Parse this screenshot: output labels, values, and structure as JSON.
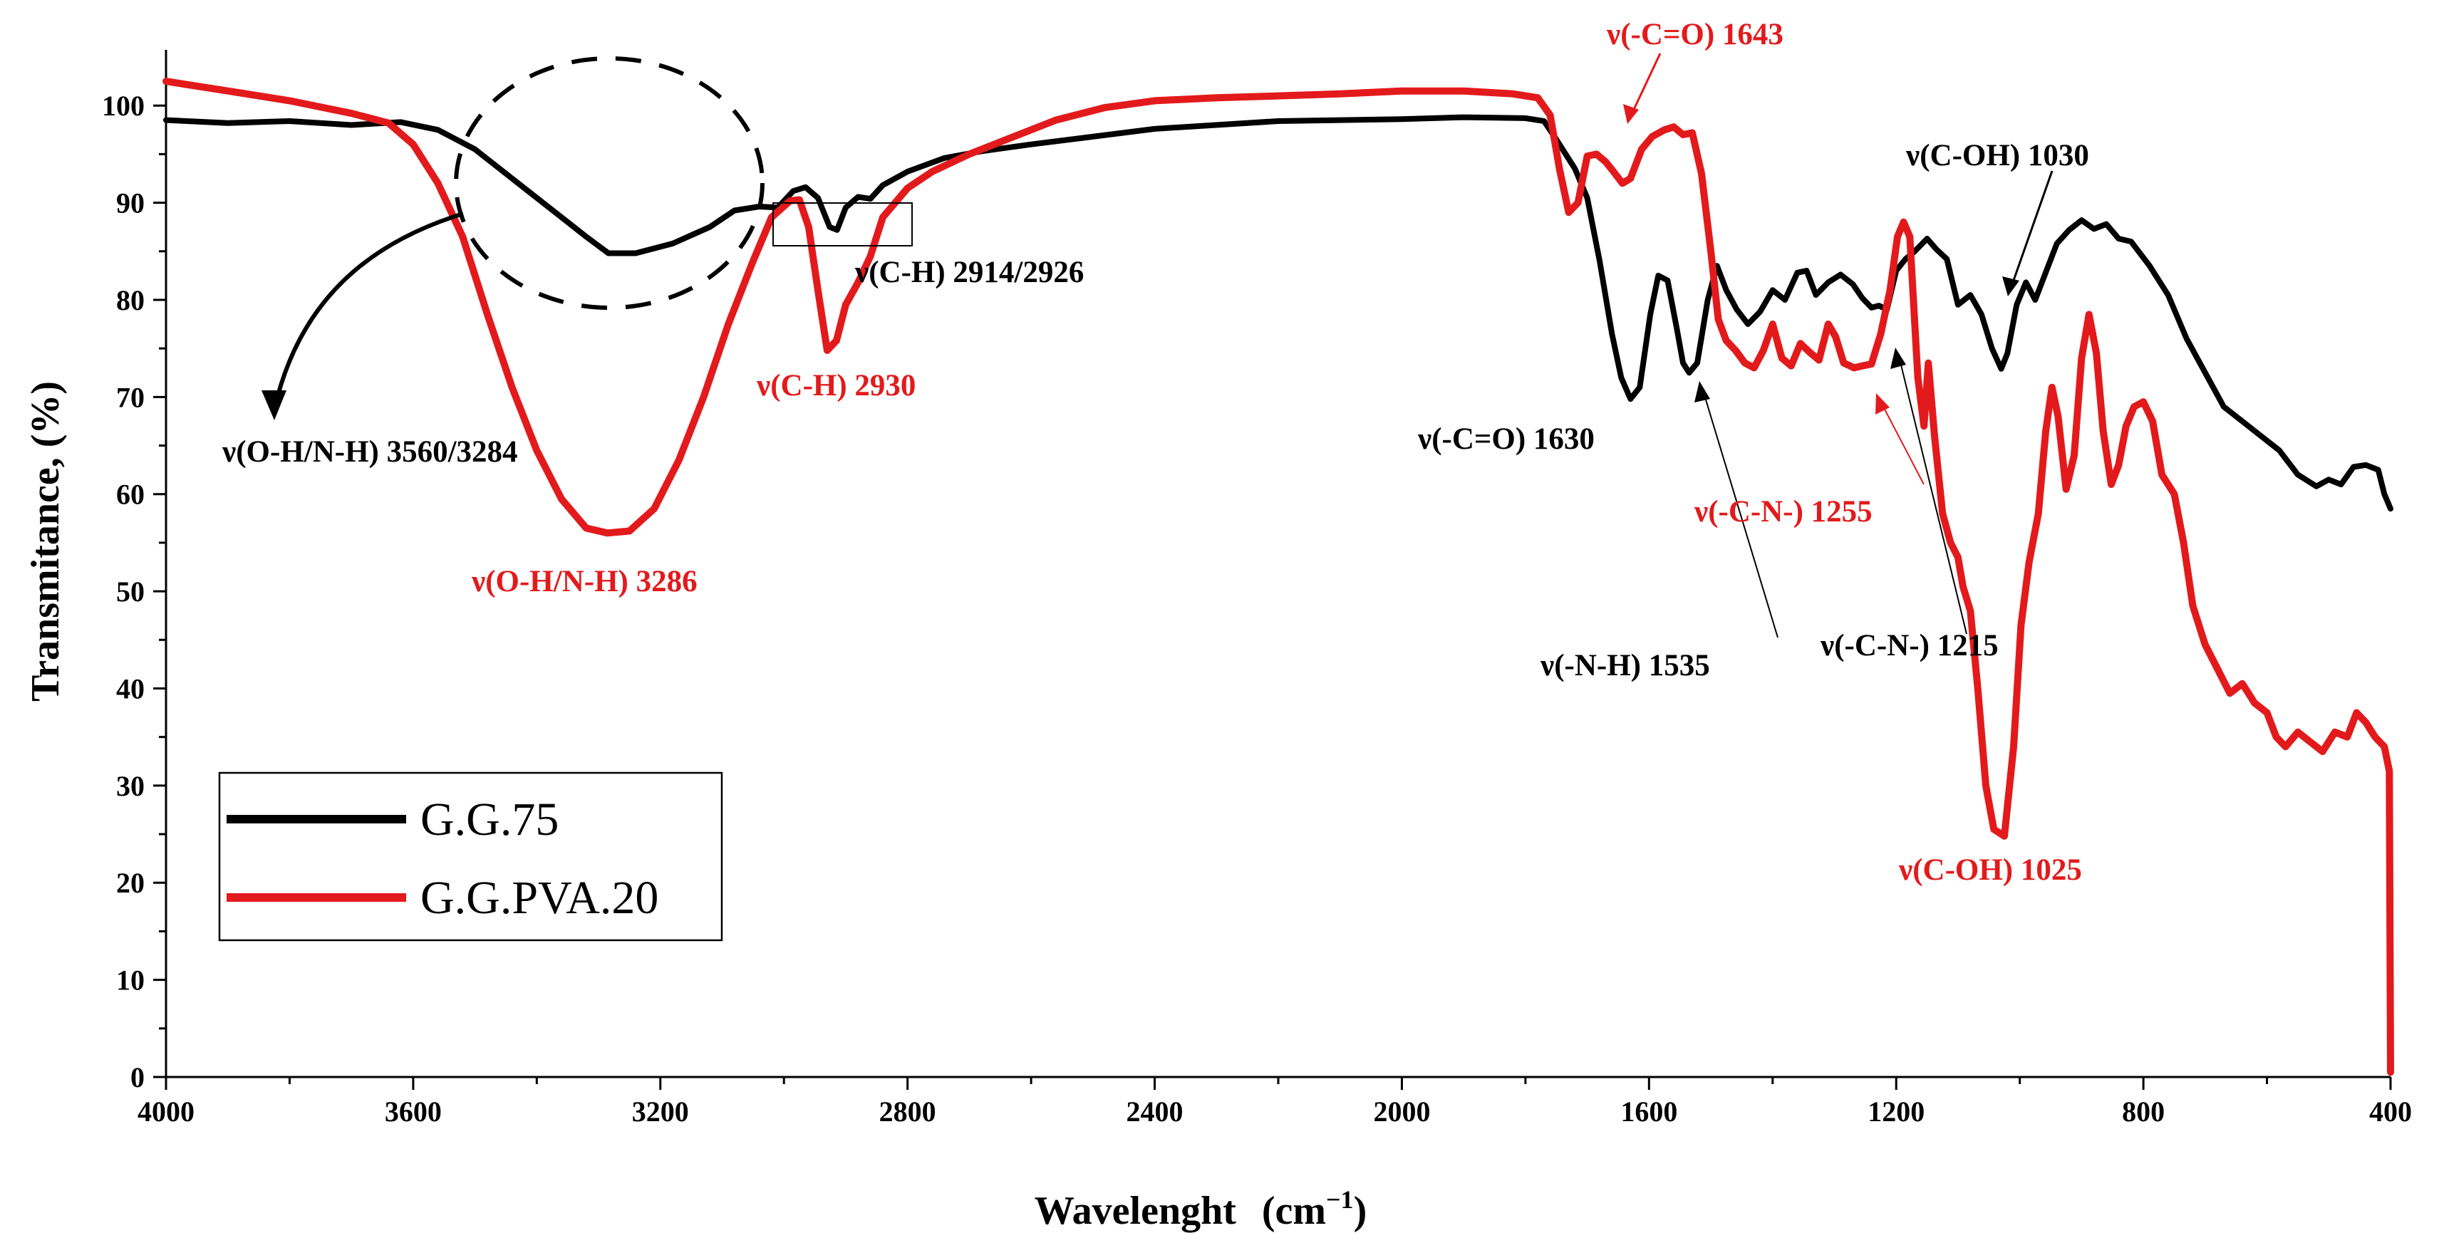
{
  "chart_data": {
    "type": "line",
    "title": "",
    "xlabel": "Wavelenght",
    "xlabel_unit": "(cm",
    "xlabel_sup": "−1",
    "xlabel_close": ")",
    "ylabel": "Transmitance, (%)",
    "xlim": [
      4000,
      400
    ],
    "ylim": [
      0,
      105
    ],
    "x_ticks": [
      4000,
      3600,
      3200,
      2800,
      2400,
      2000,
      1600,
      1200,
      800,
      400
    ],
    "y_ticks": [
      0,
      10,
      20,
      30,
      40,
      50,
      60,
      70,
      80,
      90,
      100
    ],
    "legend_position": "bottom-left",
    "colors": {
      "G.G.75": "#000000",
      "G.G.PVA.20": "#e31a1c"
    },
    "series": [
      {
        "name": "G.G.75",
        "color": "#000000",
        "points": [
          [
            4000,
            98.5
          ],
          [
            3900,
            98.2
          ],
          [
            3800,
            98.4
          ],
          [
            3700,
            98.0
          ],
          [
            3620,
            98.3
          ],
          [
            3560,
            97.5
          ],
          [
            3500,
            95.5
          ],
          [
            3440,
            92.5
          ],
          [
            3380,
            89.5
          ],
          [
            3320,
            86.5
          ],
          [
            3284,
            84.8
          ],
          [
            3240,
            84.8
          ],
          [
            3180,
            85.8
          ],
          [
            3120,
            87.5
          ],
          [
            3080,
            89.2
          ],
          [
            3040,
            89.6
          ],
          [
            3010,
            89.5
          ],
          [
            2985,
            91.2
          ],
          [
            2965,
            91.6
          ],
          [
            2945,
            90.5
          ],
          [
            2926,
            87.5
          ],
          [
            2914,
            87.2
          ],
          [
            2900,
            89.5
          ],
          [
            2880,
            90.6
          ],
          [
            2860,
            90.4
          ],
          [
            2840,
            91.8
          ],
          [
            2800,
            93.2
          ],
          [
            2740,
            94.6
          ],
          [
            2680,
            95.3
          ],
          [
            2600,
            96.0
          ],
          [
            2400,
            97.6
          ],
          [
            2200,
            98.4
          ],
          [
            2000,
            98.6
          ],
          [
            1900,
            98.8
          ],
          [
            1800,
            98.7
          ],
          [
            1770,
            98.4
          ],
          [
            1750,
            96.5
          ],
          [
            1720,
            93.5
          ],
          [
            1700,
            90.5
          ],
          [
            1680,
            84.0
          ],
          [
            1660,
            76.5
          ],
          [
            1645,
            72.0
          ],
          [
            1630,
            69.8
          ],
          [
            1615,
            71.0
          ],
          [
            1598,
            78.5
          ],
          [
            1585,
            82.5
          ],
          [
            1570,
            82.0
          ],
          [
            1555,
            77.0
          ],
          [
            1545,
            73.5
          ],
          [
            1535,
            72.5
          ],
          [
            1522,
            73.5
          ],
          [
            1505,
            80.0
          ],
          [
            1490,
            83.5
          ],
          [
            1475,
            81.0
          ],
          [
            1458,
            79.0
          ],
          [
            1440,
            77.5
          ],
          [
            1420,
            78.8
          ],
          [
            1400,
            81.0
          ],
          [
            1380,
            80.0
          ],
          [
            1360,
            82.8
          ],
          [
            1345,
            83.0
          ],
          [
            1330,
            80.5
          ],
          [
            1310,
            81.8
          ],
          [
            1290,
            82.6
          ],
          [
            1270,
            81.6
          ],
          [
            1255,
            80.2
          ],
          [
            1240,
            79.2
          ],
          [
            1228,
            79.4
          ],
          [
            1215,
            79.0
          ],
          [
            1200,
            83.0
          ],
          [
            1185,
            84.2
          ],
          [
            1170,
            85.0
          ],
          [
            1150,
            86.3
          ],
          [
            1135,
            85.2
          ],
          [
            1118,
            84.2
          ],
          [
            1100,
            79.5
          ],
          [
            1080,
            80.5
          ],
          [
            1062,
            78.5
          ],
          [
            1045,
            75.0
          ],
          [
            1030,
            72.9
          ],
          [
            1020,
            74.5
          ],
          [
            1005,
            79.5
          ],
          [
            990,
            81.8
          ],
          [
            975,
            80.0
          ],
          [
            960,
            82.5
          ],
          [
            940,
            85.8
          ],
          [
            920,
            87.2
          ],
          [
            900,
            88.2
          ],
          [
            880,
            87.3
          ],
          [
            860,
            87.8
          ],
          [
            840,
            86.3
          ],
          [
            820,
            86.0
          ],
          [
            790,
            83.5
          ],
          [
            760,
            80.5
          ],
          [
            730,
            76.0
          ],
          [
            700,
            72.5
          ],
          [
            670,
            69.0
          ],
          [
            640,
            67.5
          ],
          [
            610,
            66.0
          ],
          [
            580,
            64.5
          ],
          [
            550,
            62.0
          ],
          [
            520,
            60.8
          ],
          [
            500,
            61.5
          ],
          [
            480,
            61.0
          ],
          [
            460,
            62.8
          ],
          [
            440,
            63.0
          ],
          [
            420,
            62.5
          ],
          [
            410,
            60.0
          ],
          [
            400,
            58.5
          ]
        ]
      },
      {
        "name": "G.G.PVA.20",
        "color": "#e31a1c",
        "points": [
          [
            4000,
            102.5
          ],
          [
            3900,
            101.5
          ],
          [
            3800,
            100.5
          ],
          [
            3700,
            99.2
          ],
          [
            3640,
            98.2
          ],
          [
            3600,
            96.0
          ],
          [
            3560,
            92.0
          ],
          [
            3520,
            86.5
          ],
          [
            3480,
            78.5
          ],
          [
            3440,
            71.0
          ],
          [
            3400,
            64.5
          ],
          [
            3360,
            59.5
          ],
          [
            3320,
            56.5
          ],
          [
            3286,
            56.0
          ],
          [
            3250,
            56.2
          ],
          [
            3210,
            58.5
          ],
          [
            3170,
            63.5
          ],
          [
            3130,
            70.0
          ],
          [
            3090,
            77.5
          ],
          [
            3050,
            84.0
          ],
          [
            3020,
            88.5
          ],
          [
            2990,
            90.2
          ],
          [
            2975,
            90.3
          ],
          [
            2960,
            87.5
          ],
          [
            2945,
            81.0
          ],
          [
            2930,
            74.8
          ],
          [
            2915,
            75.8
          ],
          [
            2900,
            79.5
          ],
          [
            2880,
            81.8
          ],
          [
            2860,
            84.5
          ],
          [
            2840,
            88.5
          ],
          [
            2800,
            91.5
          ],
          [
            2760,
            93.2
          ],
          [
            2700,
            95.0
          ],
          [
            2640,
            96.5
          ],
          [
            2560,
            98.5
          ],
          [
            2480,
            99.8
          ],
          [
            2400,
            100.5
          ],
          [
            2300,
            100.8
          ],
          [
            2200,
            101.0
          ],
          [
            2100,
            101.2
          ],
          [
            2000,
            101.5
          ],
          [
            1900,
            101.5
          ],
          [
            1820,
            101.2
          ],
          [
            1780,
            100.8
          ],
          [
            1760,
            99.0
          ],
          [
            1745,
            93.5
          ],
          [
            1730,
            89.0
          ],
          [
            1715,
            90.0
          ],
          [
            1700,
            94.8
          ],
          [
            1685,
            95.0
          ],
          [
            1670,
            94.2
          ],
          [
            1655,
            93.0
          ],
          [
            1643,
            92.0
          ],
          [
            1630,
            92.5
          ],
          [
            1612,
            95.5
          ],
          [
            1595,
            96.8
          ],
          [
            1575,
            97.5
          ],
          [
            1560,
            97.8
          ],
          [
            1545,
            97.0
          ],
          [
            1530,
            97.2
          ],
          [
            1515,
            93.0
          ],
          [
            1500,
            85.0
          ],
          [
            1488,
            78.0
          ],
          [
            1475,
            75.8
          ],
          [
            1460,
            74.8
          ],
          [
            1445,
            73.5
          ],
          [
            1430,
            73.0
          ],
          [
            1415,
            74.8
          ],
          [
            1400,
            77.5
          ],
          [
            1385,
            74.0
          ],
          [
            1370,
            73.2
          ],
          [
            1355,
            75.5
          ],
          [
            1340,
            74.6
          ],
          [
            1325,
            73.8
          ],
          [
            1310,
            77.5
          ],
          [
            1298,
            76.2
          ],
          [
            1285,
            73.5
          ],
          [
            1268,
            73.0
          ],
          [
            1255,
            73.2
          ],
          [
            1240,
            73.4
          ],
          [
            1225,
            76.5
          ],
          [
            1210,
            81.0
          ],
          [
            1198,
            86.5
          ],
          [
            1188,
            88.0
          ],
          [
            1178,
            86.5
          ],
          [
            1165,
            72.0
          ],
          [
            1155,
            67.0
          ],
          [
            1148,
            73.5
          ],
          [
            1138,
            66.0
          ],
          [
            1125,
            58.0
          ],
          [
            1112,
            55.0
          ],
          [
            1100,
            53.5
          ],
          [
            1092,
            50.5
          ],
          [
            1080,
            48.0
          ],
          [
            1068,
            40.0
          ],
          [
            1055,
            30.0
          ],
          [
            1042,
            25.5
          ],
          [
            1025,
            24.8
          ],
          [
            1010,
            34.0
          ],
          [
            998,
            46.5
          ],
          [
            985,
            53.0
          ],
          [
            970,
            58.0
          ],
          [
            958,
            66.5
          ],
          [
            948,
            71.0
          ],
          [
            938,
            68.0
          ],
          [
            925,
            60.5
          ],
          [
            912,
            64.0
          ],
          [
            900,
            74.0
          ],
          [
            888,
            78.5
          ],
          [
            876,
            74.5
          ],
          [
            865,
            66.5
          ],
          [
            852,
            61.0
          ],
          [
            840,
            63.0
          ],
          [
            828,
            67.0
          ],
          [
            815,
            69.0
          ],
          [
            800,
            69.5
          ],
          [
            785,
            67.5
          ],
          [
            770,
            62.0
          ],
          [
            750,
            60.0
          ],
          [
            735,
            55.0
          ],
          [
            720,
            48.5
          ],
          [
            700,
            44.5
          ],
          [
            680,
            42.0
          ],
          [
            660,
            39.5
          ],
          [
            640,
            40.5
          ],
          [
            620,
            38.5
          ],
          [
            600,
            37.5
          ],
          [
            585,
            35.0
          ],
          [
            570,
            34.0
          ],
          [
            550,
            35.5
          ],
          [
            530,
            34.5
          ],
          [
            510,
            33.5
          ],
          [
            490,
            35.5
          ],
          [
            470,
            35.0
          ],
          [
            455,
            37.5
          ],
          [
            440,
            36.5
          ],
          [
            425,
            35.0
          ],
          [
            410,
            34.0
          ],
          [
            402,
            31.5
          ],
          [
            400,
            0.5
          ]
        ]
      }
    ],
    "annotations": [
      {
        "text": "ν(O-H/N-H) 3560/3284",
        "color": "#000000"
      },
      {
        "text": "ν(C-H) 2914/2926",
        "color": "#000000"
      },
      {
        "text": "ν(C-H) 2930",
        "color": "#e31a1c"
      },
      {
        "text": "ν(O-H/N-H) 3286",
        "color": "#e31a1c"
      },
      {
        "text": "ν(-C=O) 1643",
        "color": "#e31a1c"
      },
      {
        "text": "ν(-C=O) 1630",
        "color": "#000000"
      },
      {
        "text": "ν(C-OH) 1030",
        "color": "#000000"
      },
      {
        "text": "ν(-C-N-) 1255",
        "color": "#e31a1c"
      },
      {
        "text": "ν(-N-H) 1535",
        "color": "#000000"
      },
      {
        "text": "ν(-C-N-) 1215",
        "color": "#000000"
      },
      {
        "text": "ν(C-OH) 1025",
        "color": "#e31a1c"
      }
    ],
    "legend": [
      {
        "label": "G.G.75",
        "color": "#000000"
      },
      {
        "label": "G.G.PVA.20",
        "color": "#e31a1c"
      }
    ]
  }
}
